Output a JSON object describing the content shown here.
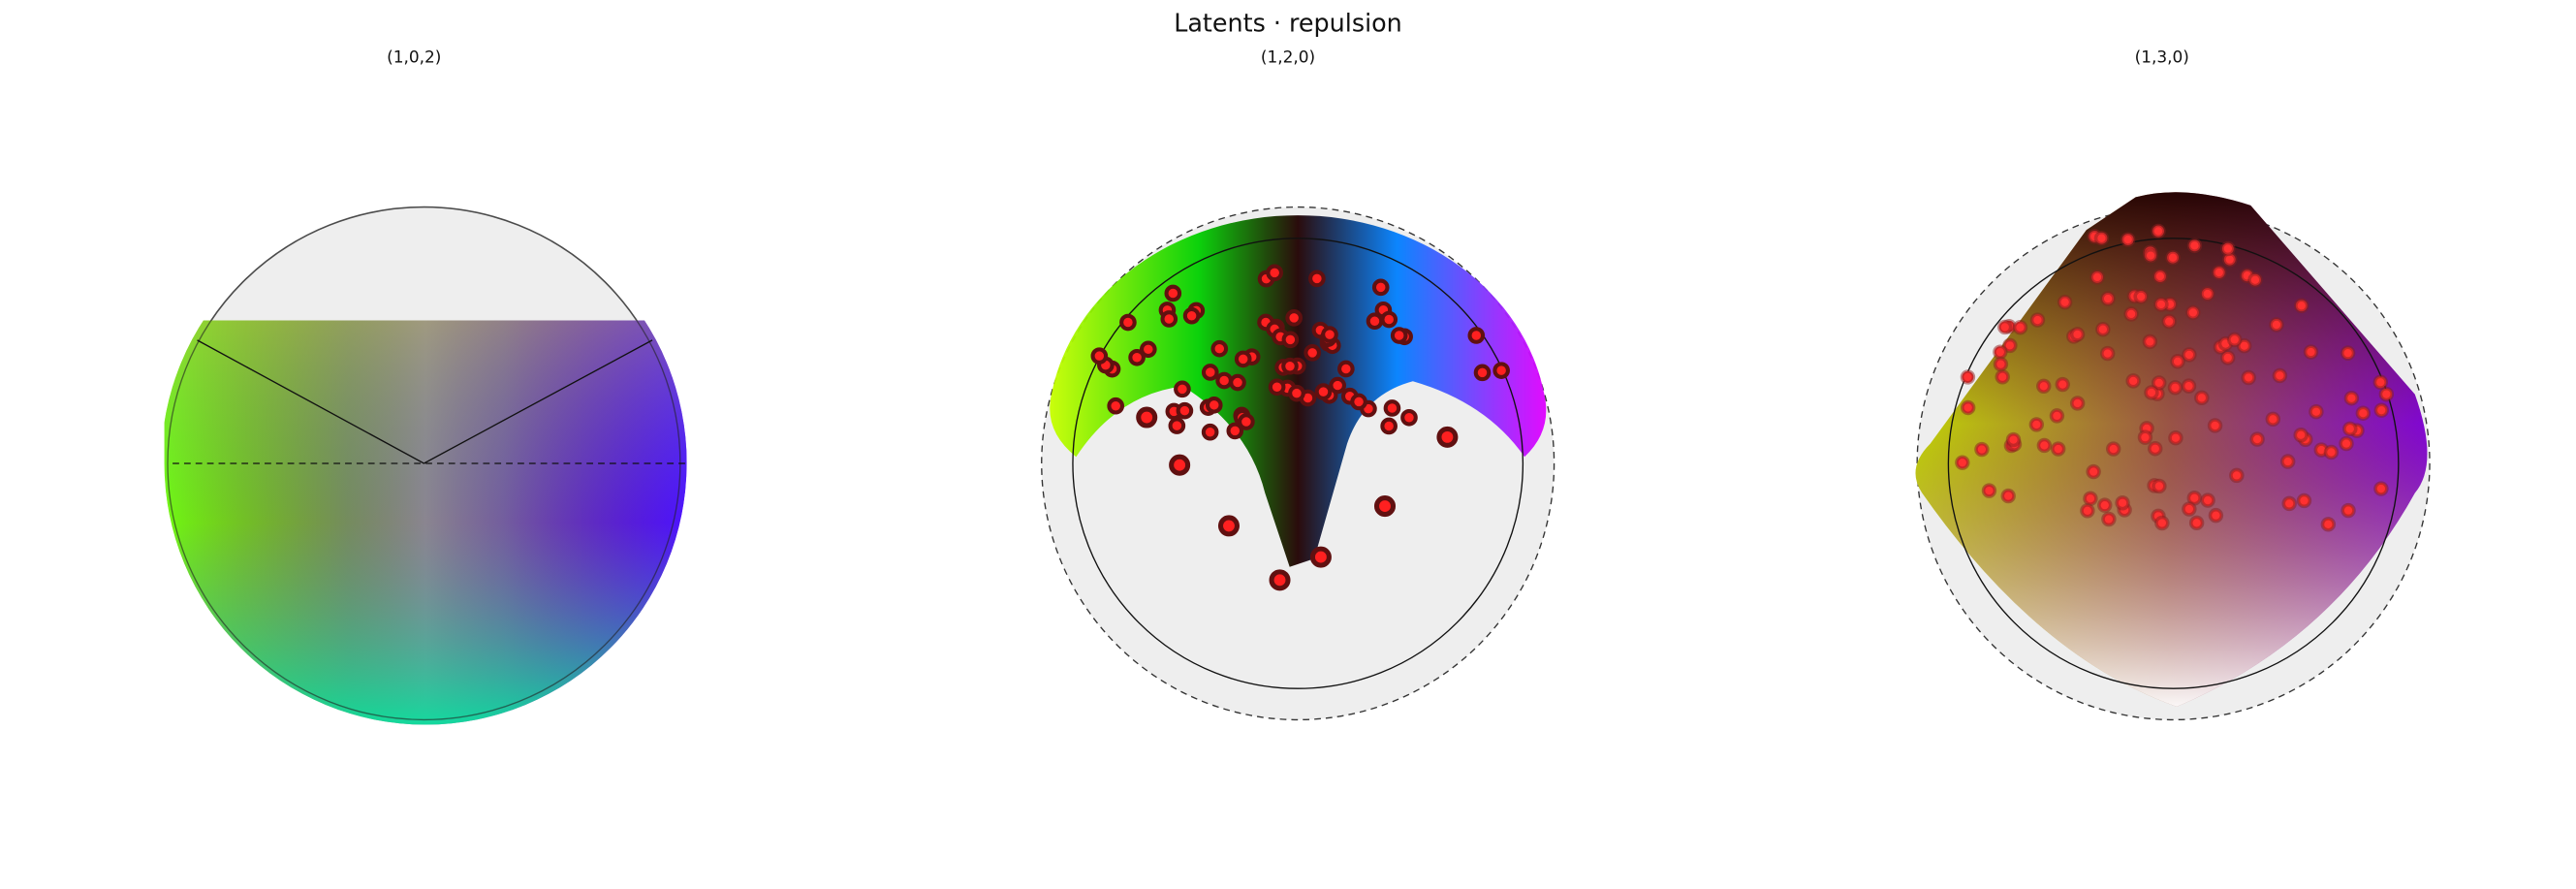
{
  "title": "Latents · repulsion",
  "panels": [
    {
      "title": "(1,0,2)"
    },
    {
      "title": "(1,2,0)"
    },
    {
      "title": "(1,3,0)"
    }
  ]
}
